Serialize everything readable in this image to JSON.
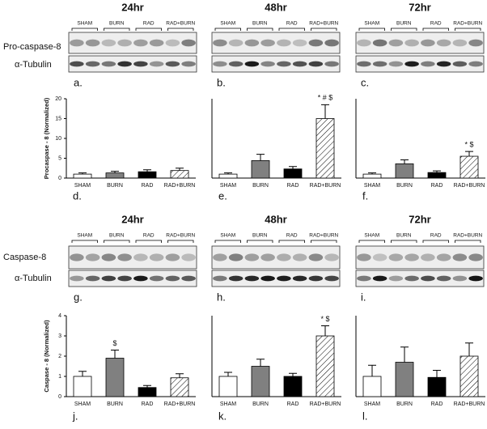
{
  "blot_row_labels": [
    [
      "Pro-caspase-8",
      "α-Tubulin"
    ],
    [
      "Caspase-8",
      "α-Tubulin"
    ]
  ],
  "blot_panels": [
    {
      "time": "24hr",
      "groups": [
        "SHAM",
        "BURN",
        "RAD",
        "RAD+BURN"
      ],
      "label": "a."
    },
    {
      "time": "48hr",
      "groups": [
        "SHAM",
        "BURN",
        "RAD",
        "RAD+BURN"
      ],
      "label": "b."
    },
    {
      "time": "72hr",
      "groups": [
        "SHAM",
        "BURN",
        "RAD",
        "RAD+BURN"
      ],
      "label": "c."
    },
    {
      "time": "24hr",
      "groups": [
        "SHAM",
        "BURN",
        "RAD",
        "RAD+BURN"
      ],
      "label": "g."
    },
    {
      "time": "48hr",
      "groups": [
        "SHAM",
        "BURN",
        "RAD",
        "RAD+BURN"
      ],
      "label": "h."
    },
    {
      "time": "72hr",
      "groups": [
        "SHAM",
        "BURN",
        "RAD",
        "RAD+BURN"
      ],
      "label": "i."
    }
  ],
  "chart_data": [
    {
      "type": "bar",
      "label": "d.",
      "y_label": "Procaspase - 8 (Normalized)",
      "categories": [
        "SHAM",
        "BURN",
        "RAD",
        "RAD+BURN"
      ],
      "values": [
        1.0,
        1.3,
        1.6,
        1.9
      ],
      "errors": [
        0.3,
        0.4,
        0.5,
        0.6
      ],
      "colors": [
        "#ffffff",
        "#808080",
        "#000000",
        "hatch"
      ],
      "ylim": [
        0,
        20
      ],
      "yticks": [
        0,
        5,
        10,
        15,
        20
      ]
    },
    {
      "type": "bar",
      "label": "e.",
      "categories": [
        "SHAM",
        "BURN",
        "RAD",
        "RAD+BURN"
      ],
      "values": [
        1.0,
        4.4,
        2.3,
        15.0
      ],
      "errors": [
        0.3,
        1.6,
        0.6,
        3.5
      ],
      "annotations": [
        null,
        null,
        null,
        "* # $"
      ],
      "colors": [
        "#ffffff",
        "#808080",
        "#000000",
        "hatch"
      ],
      "ylim": [
        0,
        20
      ]
    },
    {
      "type": "bar",
      "label": "f.",
      "categories": [
        "SHAM",
        "BURN",
        "RAD",
        "RAD+BURN"
      ],
      "values": [
        1.0,
        3.6,
        1.4,
        5.5
      ],
      "errors": [
        0.3,
        1.0,
        0.4,
        1.2
      ],
      "annotations": [
        null,
        null,
        null,
        "* $"
      ],
      "colors": [
        "#ffffff",
        "#808080",
        "#000000",
        "hatch"
      ],
      "ylim": [
        0,
        20
      ]
    },
    {
      "type": "bar",
      "label": "j.",
      "y_label": "Caspase - 8 (Normalized)",
      "categories": [
        "SHAM",
        "BURN",
        "RAD",
        "RAD+BURN"
      ],
      "values": [
        1.0,
        1.9,
        0.45,
        0.93
      ],
      "errors": [
        0.25,
        0.4,
        0.1,
        0.2
      ],
      "annotations": [
        null,
        "$",
        null,
        null
      ],
      "colors": [
        "#ffffff",
        "#808080",
        "#000000",
        "hatch"
      ],
      "ylim": [
        0,
        4
      ],
      "yticks": [
        0,
        1,
        2,
        3,
        4
      ]
    },
    {
      "type": "bar",
      "label": "k.",
      "categories": [
        "SHAM",
        "BURN",
        "RAD",
        "RAD+BURN"
      ],
      "values": [
        1.0,
        1.5,
        1.0,
        3.0
      ],
      "errors": [
        0.2,
        0.35,
        0.15,
        0.5
      ],
      "annotations": [
        null,
        null,
        null,
        "* $"
      ],
      "colors": [
        "#ffffff",
        "#808080",
        "#000000",
        "hatch"
      ],
      "ylim": [
        0,
        4
      ]
    },
    {
      "type": "bar",
      "label": "l.",
      "categories": [
        "SHAM",
        "BURN",
        "RAD",
        "RAD+BURN"
      ],
      "values": [
        1.0,
        1.7,
        0.95,
        2.0
      ],
      "errors": [
        0.55,
        0.75,
        0.35,
        0.65
      ],
      "colors": [
        "#ffffff",
        "#808080",
        "#000000",
        "hatch"
      ],
      "ylim": [
        0,
        4
      ]
    }
  ]
}
